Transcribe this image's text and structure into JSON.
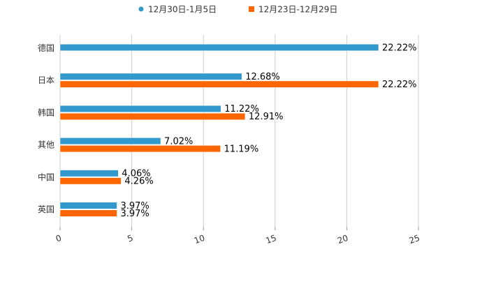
{
  "chart_data": {
    "type": "bar",
    "orientation": "horizontal",
    "categories": [
      "德国",
      "日本",
      "韩国",
      "其他",
      "中国",
      "英国"
    ],
    "series": [
      {
        "name": "12月30日-1月5日",
        "color": "#3399cc",
        "values": [
          22.22,
          12.68,
          11.22,
          7.02,
          4.06,
          3.97
        ],
        "labels": [
          "22.22%",
          "12.68%",
          "11.22%",
          "7.02%",
          "4.06%",
          "3.97%"
        ]
      },
      {
        "name": "12月23日-12月29日",
        "color": "#ff6600",
        "values": [
          null,
          22.22,
          12.91,
          11.19,
          4.26,
          3.97
        ],
        "labels": [
          "",
          "22.22%",
          "12.91%",
          "11.19%",
          "4.26%",
          "3.97%"
        ]
      }
    ],
    "xlim": [
      0,
      25
    ],
    "xticks": [
      "0",
      "5",
      "10",
      "15",
      "20",
      "25"
    ],
    "grid": true,
    "legend_position": "top-center",
    "title": "",
    "xlabel": "",
    "ylabel": ""
  }
}
